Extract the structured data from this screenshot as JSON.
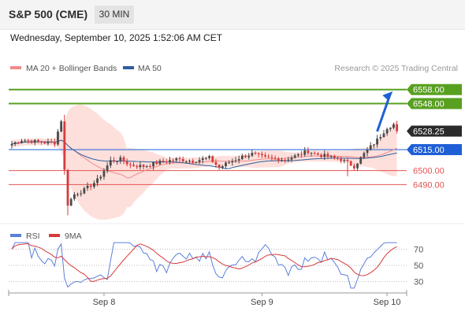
{
  "header": {
    "instrument": "S&P 500 (CME)",
    "timeframe": "30 MIN",
    "datetime": "Wednesday, September 10, 2025 1:52:06 AM CET"
  },
  "legend": {
    "ma20_label": "MA 20 + Bollinger Bands",
    "ma50_label": "MA 50",
    "credit": "Research © 2025 Trading Central",
    "rsi_label": "RSI",
    "rsi_ma_label": "9MA"
  },
  "colors": {
    "up": "#4a4a4a",
    "down": "#d83a3a",
    "ma20": "#f08a8a",
    "ma50": "#2e5e9e",
    "bollinger_fill": "#fde0dc",
    "resistance": "#58a020",
    "pivot": "#1f5fd6",
    "support": "#e55353",
    "last": "#2b2b2b",
    "rsi": "#5b7fdb",
    "rsi_ma": "#d83a3a"
  },
  "chart_data": {
    "type": "candlestick",
    "x_tick_labels": [
      "Sep 8",
      "Sep 9",
      "Sep 10"
    ],
    "y_range": [
      6462,
      6568
    ],
    "price_levels": [
      {
        "label": "6558.00",
        "value": 6558.0,
        "kind": "resistance"
      },
      {
        "label": "6548.00",
        "value": 6548.0,
        "kind": "resistance"
      },
      {
        "label": "6528.25",
        "value": 6528.25,
        "kind": "last"
      },
      {
        "label": "6515.00",
        "value": 6515.0,
        "kind": "pivot"
      },
      {
        "label": "6500.00",
        "value": 6500.0,
        "kind": "support"
      },
      {
        "label": "6490.00",
        "value": 6490.0,
        "kind": "support"
      }
    ],
    "arrow": {
      "from": [
        111,
        6528
      ],
      "to": [
        115,
        6555
      ]
    },
    "rsi": {
      "y_range": [
        20,
        80
      ],
      "reference_lines": [
        70,
        50,
        30
      ],
      "tick_labels": [
        "70",
        "50",
        "30"
      ]
    }
  }
}
